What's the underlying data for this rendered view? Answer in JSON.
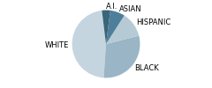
{
  "chart_data": {
    "type": "pie",
    "categories": [
      "WHITE",
      "BLACK",
      "HISPANIC",
      "ASIAN",
      "A.I."
    ],
    "values": [
      47,
      30,
      12,
      7,
      4
    ],
    "colors": [
      "#c5d5e0",
      "#9ab5c5",
      "#b5cad5",
      "#4e7f9a",
      "#3a6478"
    ]
  }
}
